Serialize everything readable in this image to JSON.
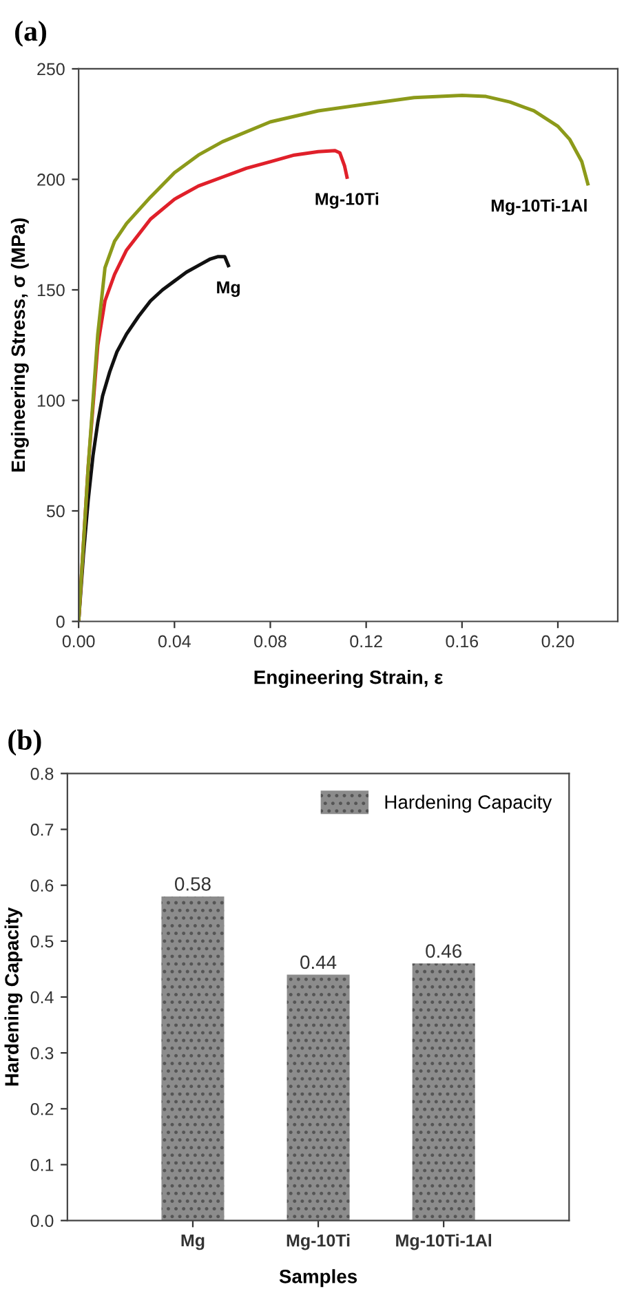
{
  "chart_data": [
    {
      "type": "line",
      "title": "(a)",
      "xlabel": "Engineering Strain, ε",
      "ylabel": "Engineering Stress, σ (MPa)",
      "xlim": [
        0,
        0.225
      ],
      "ylim": [
        0,
        250
      ],
      "xticks": [
        {
          "value": 0,
          "label": "0.00"
        },
        {
          "value": 0.04,
          "label": "0.04"
        },
        {
          "value": 0.08,
          "label": "0.08"
        },
        {
          "value": 0.12,
          "label": "0.12"
        },
        {
          "value": 0.16,
          "label": "0.16"
        },
        {
          "value": 0.2,
          "label": "0.20"
        }
      ],
      "yticks": [
        0,
        50,
        100,
        150,
        200,
        250
      ],
      "grid": false,
      "legend": false,
      "marker": "none",
      "line_style": "solid",
      "series": [
        {
          "name": "Mg",
          "color": "#111111",
          "x": [
            0,
            0.002,
            0.004,
            0.006,
            0.008,
            0.01,
            0.013,
            0.016,
            0.02,
            0.025,
            0.03,
            0.035,
            0.04,
            0.045,
            0.05,
            0.055,
            0.058,
            0.061,
            0.0625
          ],
          "values": [
            0,
            30,
            55,
            75,
            90,
            102,
            113,
            122,
            130,
            138,
            145,
            150,
            154,
            158,
            161,
            164,
            165,
            165,
            161
          ]
        },
        {
          "name": "Mg-10Ti",
          "color": "#e0202a",
          "x": [
            0,
            0.004,
            0.008,
            0.011,
            0.015,
            0.02,
            0.03,
            0.04,
            0.05,
            0.06,
            0.07,
            0.08,
            0.09,
            0.1,
            0.107,
            0.109,
            0.111,
            0.112
          ],
          "values": [
            0,
            70,
            125,
            145,
            157,
            168,
            182,
            191,
            197,
            201,
            205,
            208,
            211,
            212.5,
            213,
            212,
            206,
            201
          ]
        },
        {
          "name": "Mg-10Ti-1Al",
          "color": "#8c9a1a",
          "x": [
            0,
            0.004,
            0.008,
            0.011,
            0.015,
            0.02,
            0.03,
            0.04,
            0.05,
            0.06,
            0.08,
            0.1,
            0.12,
            0.14,
            0.16,
            0.17,
            0.18,
            0.19,
            0.2,
            0.205,
            0.21,
            0.2125
          ],
          "values": [
            0,
            70,
            130,
            160,
            172,
            180,
            192,
            203,
            211,
            217,
            226,
            231,
            234,
            237,
            238,
            237.5,
            235,
            231,
            224,
            218,
            208,
            198
          ]
        }
      ]
    },
    {
      "type": "bar",
      "title": "(b)",
      "xlabel": "Samples",
      "ylabel": "Hardening Capacity",
      "categories": [
        "Mg",
        "Mg-10Ti",
        "Mg-10Ti-1Al"
      ],
      "ylim": [
        0,
        0.8
      ],
      "yticks": [
        {
          "value": 0,
          "label": "0.0"
        },
        {
          "value": 0.1,
          "label": "0.1"
        },
        {
          "value": 0.2,
          "label": "0.2"
        },
        {
          "value": 0.3,
          "label": "0.3"
        },
        {
          "value": 0.4,
          "label": "0.4"
        },
        {
          "value": 0.5,
          "label": "0.5"
        },
        {
          "value": 0.6,
          "label": "0.6"
        },
        {
          "value": 0.7,
          "label": "0.7"
        },
        {
          "value": 0.8,
          "label": "0.8"
        }
      ],
      "grid": false,
      "legend": "top right",
      "data_labels": true,
      "series": [
        {
          "name": "Hardening Capacity",
          "color": "#8c8c8c",
          "values": [
            0.58,
            0.44,
            0.46
          ]
        }
      ]
    }
  ]
}
